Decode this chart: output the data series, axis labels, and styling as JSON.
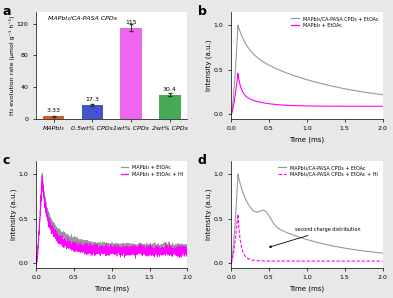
{
  "panel_a": {
    "categories": [
      "MAPbI₃",
      "0.5wt% CPDs",
      "1wt% CPDs",
      "2wt% CPDs"
    ],
    "values": [
      3.33,
      17.3,
      115,
      30.4
    ],
    "errors": [
      0.5,
      1.8,
      4.5,
      2.0
    ],
    "bar_colors": [
      "#d4611a",
      "#4455cc",
      "#ee66ee",
      "#44aa55"
    ],
    "ylabel": "H₂ evolution rate (μmol g⁻¹ h⁻¹)",
    "title": "MAPbI₃/CA-PASA CPDs",
    "ylim": [
      0,
      135
    ],
    "yticks": [
      0,
      40,
      80,
      120
    ]
  },
  "panel_b": {
    "legend": [
      "MAPbI₃/CA-PASA CPDs + EtOAc",
      "MAPbI₃ + EtOAc"
    ],
    "line_colors": [
      "#999999",
      "#ff00ff"
    ],
    "xlabel": "Time (ms)",
    "ylabel": "Intensity (a.u.)",
    "xlim": [
      0,
      2.0
    ],
    "ylim": [
      -0.05,
      1.15
    ],
    "yticks": [
      0.0,
      0.5,
      1.0
    ],
    "xticks": [
      0.0,
      0.5,
      1.0,
      1.5,
      2.0
    ]
  },
  "panel_c": {
    "legend": [
      "MAPbI₃ + EtOAc",
      "MAPbI₃ + EtOAc + HI"
    ],
    "line_colors": [
      "#999999",
      "#ff00ff"
    ],
    "xlabel": "Time (ms)",
    "ylabel": "Intensity (a.u.)",
    "xlim": [
      0,
      2.0
    ],
    "ylim": [
      -0.05,
      1.15
    ],
    "yticks": [
      0.0,
      0.5,
      1.0
    ],
    "xticks": [
      0.0,
      0.5,
      1.0,
      1.5,
      2.0
    ]
  },
  "panel_d": {
    "legend": [
      "MAPbI₃/CA-PASA CPDs + EtOAc",
      "MAPbI₃/CA-PASA CPDs + EtOAc + HI"
    ],
    "line_colors": [
      "#999999",
      "#ff00ff"
    ],
    "annotation": "second charge distribution",
    "xlabel": "Time (ms)",
    "ylabel": "Intensity (a.u.)",
    "xlim": [
      0,
      2.0
    ],
    "ylim": [
      -0.05,
      1.15
    ],
    "yticks": [
      0.0,
      0.5,
      1.0
    ],
    "xticks": [
      0.0,
      0.5,
      1.0,
      1.5,
      2.0
    ]
  },
  "fig_bg": "#e8e8e8"
}
